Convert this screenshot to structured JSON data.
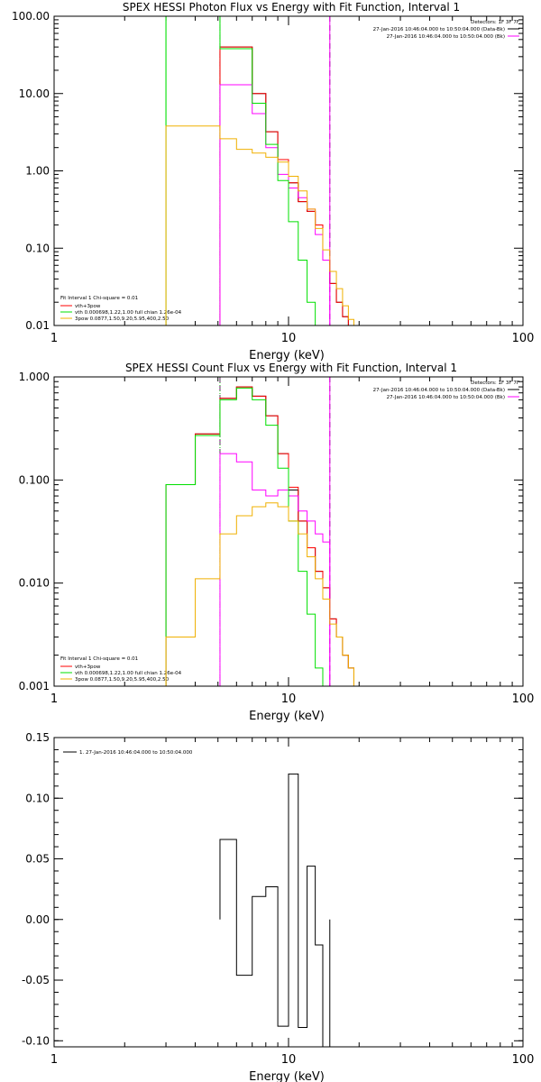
{
  "chart_data": [
    {
      "type": "line",
      "title": "SPEX HESSI Photon Flux vs Energy with Fit Function, Interval 1",
      "xlabel": "Energy (keV)",
      "ylabel": "",
      "xscale": "log",
      "yscale": "log",
      "xlim": [
        1,
        100
      ],
      "ylim": [
        0.01,
        100
      ],
      "xticks": [
        {
          "v": 1,
          "label": "1"
        },
        {
          "v": 10,
          "label": "10"
        },
        {
          "v": 100,
          "label": "100"
        }
      ],
      "yticks": [
        {
          "v": 0.01,
          "label": "0.01"
        },
        {
          "v": 0.1,
          "label": "0.10"
        },
        {
          "v": 1,
          "label": "1.00"
        },
        {
          "v": 10,
          "label": "10.00"
        },
        {
          "v": 100,
          "label": "100.00"
        }
      ],
      "vlines": [
        {
          "x": 5.1,
          "color": "#800080",
          "style": "dashed"
        },
        {
          "x": 5.1,
          "color": "#00c800",
          "style": "dotted"
        },
        {
          "x": 15.0,
          "color": "#000000",
          "style": "dashed"
        },
        {
          "x": 15.0,
          "color": "#ff00ff",
          "style": "solid"
        },
        {
          "x": 3.0,
          "color": "#00e000",
          "style": "solid"
        }
      ],
      "top_legend": {
        "lines": [
          {
            "text": "Detectors: 1F 3F 7F",
            "color": ""
          },
          {
            "text": "27-Jan-2016 10:46:04.000 to 10:50:04.000 (Data-Bk)",
            "color": "#000000"
          },
          {
            "text": "27-Jan-2016 10:46:04.000 to 10:50:04.000 (Bk)",
            "color": "#ff00ff"
          }
        ]
      },
      "fit_legend": {
        "header": "Fit Interval 1    Chi-square = 0.01",
        "entries": [
          {
            "text": "vth+3pow",
            "color": "#ff0000"
          },
          {
            "text": "vth 0.000698,1.22,1.00   full chian 1.26e-04",
            "color": "#00e000"
          },
          {
            "text": "3pow 0.0877,1.50,9.20,5.95,400,2.50",
            "color": "#f0b000"
          }
        ]
      },
      "series": [
        {
          "color": "#000000",
          "edges": [
            5.1,
            6,
            7,
            8,
            9,
            10,
            11,
            12,
            13,
            14,
            15,
            16,
            17,
            18,
            19,
            20
          ],
          "values": [
            40,
            40,
            10,
            3.2,
            1.4,
            0.7,
            0.4,
            0.3,
            0.2,
            0.07,
            0.035,
            0.02,
            0.013,
            0.01,
            0.01
          ]
        },
        {
          "color": "#ff0000",
          "edges": [
            5.1,
            6,
            7,
            8,
            9,
            10,
            11,
            12,
            13,
            14,
            15,
            16,
            17,
            18,
            19,
            20
          ],
          "values": [
            40,
            40,
            10,
            3.2,
            1.4,
            0.7,
            0.4,
            0.3,
            0.2,
            0.07,
            0.035,
            0.02,
            0.013,
            0.01,
            0.01
          ]
        },
        {
          "color": "#ff00ff",
          "edges": [
            5.1,
            6,
            7,
            8,
            9,
            10,
            11,
            12,
            13,
            14,
            15
          ],
          "values": [
            13,
            13,
            5.5,
            2.0,
            0.9,
            0.6,
            0.45,
            0.32,
            0.15,
            0.07
          ]
        },
        {
          "color": "#00e000",
          "edges": [
            3.0,
            5.1,
            6,
            7,
            8,
            9,
            10,
            11,
            12,
            13,
            14
          ],
          "values": [
            100,
            38,
            38,
            7.5,
            2.2,
            0.75,
            0.22,
            0.07,
            0.02,
            0.01
          ]
        },
        {
          "color": "#f0b000",
          "edges": [
            3.0,
            4.0,
            5.1,
            6,
            7,
            8,
            9,
            10,
            11,
            12,
            13,
            14,
            15,
            16,
            17,
            18,
            19,
            20
          ],
          "values": [
            3.8,
            3.8,
            2.6,
            1.9,
            1.7,
            1.5,
            1.3,
            0.85,
            0.55,
            0.32,
            0.18,
            0.095,
            0.05,
            0.03,
            0.018,
            0.012,
            0.01
          ]
        }
      ]
    },
    {
      "type": "line",
      "title": "SPEX HESSI Count Flux vs Energy with Fit Function, Interval 1",
      "xlabel": "Energy (keV)",
      "ylabel": "",
      "xscale": "log",
      "yscale": "log",
      "xlim": [
        1,
        100
      ],
      "ylim": [
        0.001,
        1
      ],
      "xticks": [
        {
          "v": 1,
          "label": "1"
        },
        {
          "v": 10,
          "label": "10"
        },
        {
          "v": 100,
          "label": "100"
        }
      ],
      "yticks": [
        {
          "v": 0.001,
          "label": "0.001"
        },
        {
          "v": 0.01,
          "label": "0.010"
        },
        {
          "v": 0.1,
          "label": "0.100"
        },
        {
          "v": 1,
          "label": "1.000"
        }
      ],
      "vlines": [
        {
          "x": 5.1,
          "color": "#800080",
          "style": "dashed"
        },
        {
          "x": 5.1,
          "color": "#00c800",
          "style": "dotted"
        },
        {
          "x": 15.0,
          "color": "#000000",
          "style": "dashed"
        },
        {
          "x": 15.0,
          "color": "#ff00ff",
          "style": "solid"
        }
      ],
      "top_legend": {
        "lines": [
          {
            "text": "Detectors: 1F 3F 7F",
            "color": ""
          },
          {
            "text": "27-Jan-2016 10:46:04.000 to 10:50:04.000 (Data-Bk)",
            "color": "#000000"
          },
          {
            "text": "27-Jan-2016 10:46:04.000 to 10:50:04.000 (Bk)",
            "color": "#ff00ff"
          }
        ]
      },
      "fit_legend": {
        "header": "Fit Interval 1    Chi-square = 0.01",
        "entries": [
          {
            "text": "vth+3pow",
            "color": "#ff0000"
          },
          {
            "text": "vth 0.000698,1.22,1.00   full chian 1.26e-04",
            "color": "#00e000"
          },
          {
            "text": "3pow 0.0877,1.50,9.20,5.95,400,2.50",
            "color": "#f0b000"
          }
        ]
      },
      "series": [
        {
          "color": "#000000",
          "edges": [
            3.0,
            4.0,
            5.1,
            6,
            7,
            8,
            9,
            10,
            11,
            12,
            13,
            14,
            15,
            16,
            17,
            18,
            19,
            20
          ],
          "values": [
            0.09,
            0.28,
            0.62,
            0.8,
            0.65,
            0.42,
            0.18,
            0.08,
            0.04,
            0.022,
            0.013,
            0.009,
            0.0045,
            0.003,
            0.002,
            0.0015,
            0.001
          ]
        },
        {
          "color": "#ff0000",
          "edges": [
            3.0,
            4.0,
            5.1,
            6,
            7,
            8,
            9,
            10,
            11,
            12,
            13,
            14,
            15,
            16,
            17,
            18,
            19,
            20
          ],
          "values": [
            0.09,
            0.28,
            0.62,
            0.8,
            0.65,
            0.42,
            0.18,
            0.085,
            0.04,
            0.022,
            0.013,
            0.009,
            0.0045,
            0.003,
            0.002,
            0.0015,
            0.001
          ]
        },
        {
          "color": "#ff00ff",
          "edges": [
            5.1,
            6,
            7,
            8,
            9,
            10,
            11,
            12,
            13,
            14,
            15
          ],
          "values": [
            0.18,
            0.15,
            0.08,
            0.07,
            0.08,
            0.07,
            0.05,
            0.04,
            0.03,
            0.025
          ]
        },
        {
          "color": "#00e000",
          "edges": [
            3.0,
            4.0,
            5.1,
            6,
            7,
            8,
            9,
            10,
            11,
            12,
            13,
            14,
            15
          ],
          "values": [
            0.09,
            0.27,
            0.6,
            0.78,
            0.6,
            0.34,
            0.13,
            0.04,
            0.013,
            0.005,
            0.0015,
            0.001
          ]
        },
        {
          "color": "#f0b000",
          "edges": [
            3.0,
            4.0,
            5.1,
            6,
            7,
            8,
            9,
            10,
            11,
            12,
            13,
            14,
            15,
            16,
            17,
            18,
            19,
            20
          ],
          "values": [
            0.003,
            0.011,
            0.03,
            0.045,
            0.055,
            0.06,
            0.055,
            0.04,
            0.03,
            0.018,
            0.011,
            0.007,
            0.004,
            0.003,
            0.002,
            0.0015,
            0.001
          ]
        }
      ]
    },
    {
      "type": "line",
      "title": "",
      "xlabel": "Energy (keV)",
      "ylabel": "",
      "xscale": "log",
      "yscale": "linear",
      "xlim": [
        1,
        100
      ],
      "ylim": [
        -0.105,
        0.15
      ],
      "xticks": [
        {
          "v": 1,
          "label": "1"
        },
        {
          "v": 10,
          "label": "10"
        },
        {
          "v": 100,
          "label": "100"
        }
      ],
      "yticks": [
        {
          "v": -0.1,
          "label": "-0.10"
        },
        {
          "v": -0.05,
          "label": "-0.05"
        },
        {
          "v": 0.0,
          "label": "0.00"
        },
        {
          "v": 0.05,
          "label": "0.05"
        },
        {
          "v": 0.1,
          "label": "0.10"
        },
        {
          "v": 0.15,
          "label": "0.15"
        }
      ],
      "vlines": [],
      "top_legend": {
        "lines": []
      },
      "fit_legend": {
        "header": "",
        "entries": [
          {
            "text": "1. 27-Jan-2016 10:46:04.000 to 10:50:04.000",
            "color": "#000000"
          }
        ]
      },
      "series": [
        {
          "color": "#000000",
          "edges": [
            5.1,
            6,
            7,
            8,
            9,
            10,
            11,
            12,
            13,
            14,
            15
          ],
          "values": [
            0.066,
            -0.046,
            0.019,
            0.027,
            -0.088,
            0.12,
            -0.089,
            0.044,
            -0.021,
            -0.105
          ]
        }
      ]
    }
  ]
}
